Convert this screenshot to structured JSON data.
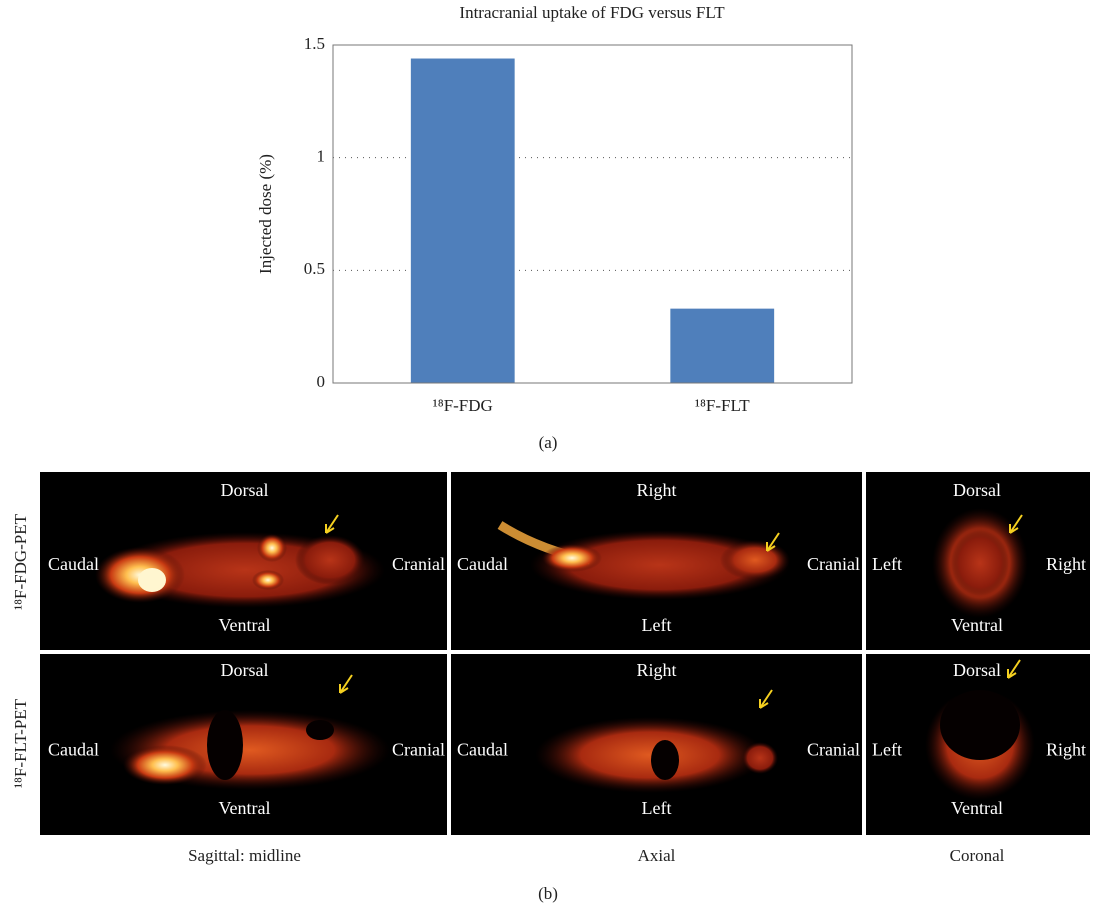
{
  "chart_data": {
    "type": "bar",
    "title": "Intracranial uptake of FDG versus FLT",
    "y_label": "Injected dose (%)",
    "categories": [
      "¹⁸F-FDG",
      "¹⁸F-FLT"
    ],
    "values": [
      1.44,
      0.33
    ],
    "color": "#4f7fbb",
    "ylim": [
      0,
      1.5
    ],
    "yticks": [
      0,
      0.5,
      1,
      1.5
    ],
    "grid": true
  },
  "panel_a_label": "(a)",
  "panel_b": {
    "row_labels": [
      "¹⁸F-FDG-PET",
      "¹⁸F-FLT-PET"
    ],
    "col_labels": [
      "Sagittal: midline",
      "Axial",
      "Coronal"
    ],
    "cells": [
      [
        {
          "top": "Dorsal",
          "bottom": "Ventral",
          "left": "Caudal",
          "right": "Cranial"
        },
        {
          "top": "Right",
          "bottom": "Left",
          "left": "Caudal",
          "right": "Cranial"
        },
        {
          "top": "Dorsal",
          "bottom": "Ventral",
          "left": "Left",
          "right": "Right"
        }
      ],
      [
        {
          "top": "Dorsal",
          "bottom": "Ventral",
          "left": "Caudal",
          "right": "Cranial"
        },
        {
          "top": "Right",
          "bottom": "Left",
          "left": "Caudal",
          "right": "Cranial"
        },
        {
          "top": "Dorsal",
          "bottom": "Ventral",
          "left": "Left",
          "right": "Right"
        }
      ]
    ],
    "label": "(b)"
  }
}
